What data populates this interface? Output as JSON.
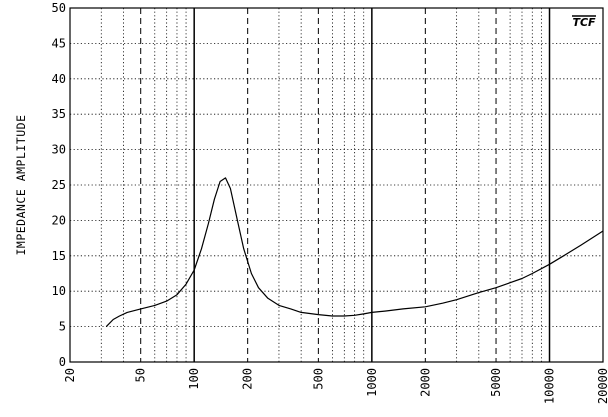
{
  "chart_data": {
    "type": "line",
    "ylabel": "IMPEDANCE AMPLITUDE",
    "xlabel": "",
    "logo_text": "TCF",
    "x_scale": "log",
    "xlim": [
      20,
      20000
    ],
    "ylim": [
      0,
      50
    ],
    "grid": true,
    "x_ticks": [
      20,
      50,
      100,
      200,
      500,
      1000,
      2000,
      5000,
      10000,
      20000
    ],
    "x_tick_labels": [
      "20",
      "50",
      "100",
      "200",
      "500",
      "1000",
      "2000",
      "5000",
      "10000",
      "20000"
    ],
    "y_ticks": [
      0,
      5,
      10,
      15,
      20,
      25,
      30,
      35,
      40,
      45,
      50
    ],
    "y_tick_labels": [
      "0",
      "5",
      "10",
      "15",
      "20",
      "25",
      "30",
      "35",
      "40",
      "45",
      "50"
    ],
    "series": [
      {
        "color": "#000000",
        "x": [
          32,
          35,
          38,
          42,
          50,
          60,
          70,
          80,
          90,
          100,
          110,
          120,
          130,
          140,
          150,
          160,
          175,
          190,
          210,
          230,
          260,
          300,
          350,
          400,
          500,
          600,
          700,
          800,
          900,
          1000,
          1200,
          1500,
          2000,
          2500,
          3000,
          4000,
          5000,
          6000,
          7000,
          8000,
          10000,
          12000,
          15000,
          20000
        ],
        "y": [
          5.0,
          6.0,
          6.5,
          7.0,
          7.5,
          8.0,
          8.6,
          9.5,
          11.0,
          13.0,
          16.0,
          19.5,
          23.0,
          25.5,
          26.0,
          24.5,
          20.0,
          16.0,
          12.5,
          10.5,
          9.0,
          8.0,
          7.5,
          7.0,
          6.7,
          6.5,
          6.5,
          6.6,
          6.8,
          7.0,
          7.2,
          7.5,
          7.8,
          8.3,
          8.8,
          9.8,
          10.5,
          11.2,
          11.8,
          12.5,
          13.8,
          15.0,
          16.5,
          18.5
        ]
      }
    ]
  }
}
